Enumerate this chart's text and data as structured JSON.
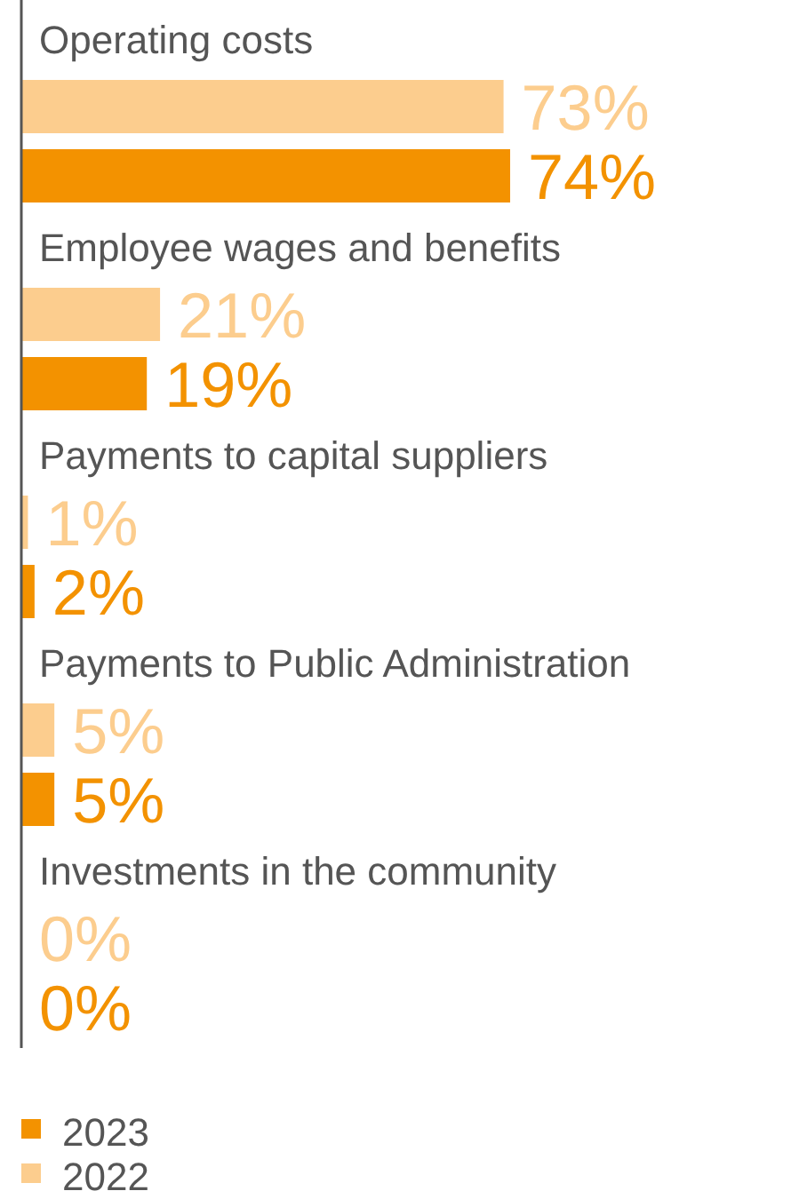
{
  "chart_data": {
    "type": "bar",
    "orientation": "horizontal",
    "categories": [
      "Operating costs",
      "Employee wages and benefits",
      "Payments to capital suppliers",
      "Payments to Public Administration",
      "Investments in the community"
    ],
    "series": [
      {
        "name": "2022",
        "color": "#fccd8e",
        "values": [
          73,
          21,
          1,
          5,
          0
        ],
        "value_labels": [
          "73%",
          "21%",
          "1%",
          "5%",
          "0%"
        ]
      },
      {
        "name": "2023",
        "color": "#f39200",
        "values": [
          74,
          19,
          2,
          5,
          0
        ],
        "value_labels": [
          "74%",
          "19%",
          "2%",
          "5%",
          "0%"
        ]
      }
    ],
    "legend": "bottom left"
  }
}
